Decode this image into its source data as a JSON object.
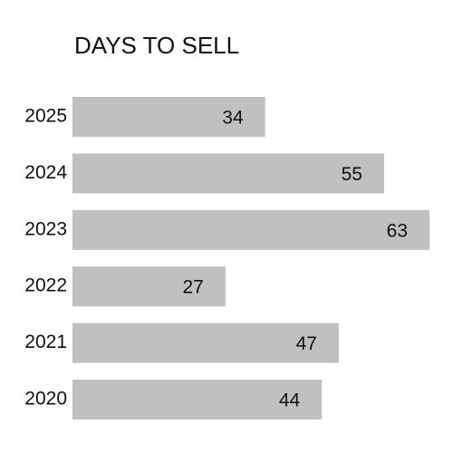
{
  "chart_data": {
    "type": "bar",
    "orientation": "horizontal",
    "title": "DAYS TO SELL",
    "categories": [
      "2025",
      "2024",
      "2023",
      "2022",
      "2021",
      "2020"
    ],
    "values": [
      34,
      55,
      63,
      27,
      47,
      44
    ],
    "color": "#c0c0c0"
  }
}
